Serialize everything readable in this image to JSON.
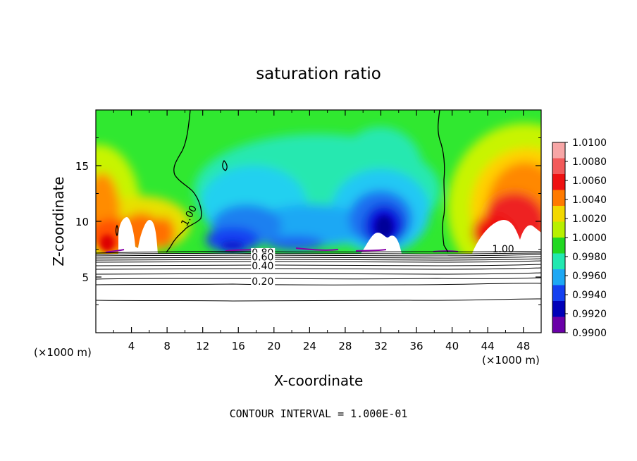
{
  "chart_data": {
    "type": "heatmap",
    "title": "saturation ratio",
    "xlabel": "X-coordinate",
    "ylabel": "Z-coordinate",
    "x_unit_label_left": "(×1000 m)",
    "x_unit_label_right": "(×1000 m)",
    "footer": "CONTOUR INTERVAL = 1.000E-01",
    "xlim": [
      0,
      50
    ],
    "ylim": [
      0,
      20
    ],
    "x_ticks": [
      4,
      8,
      12,
      16,
      20,
      24,
      28,
      32,
      36,
      40,
      44,
      48
    ],
    "y_ticks": [
      5,
      10,
      15
    ],
    "colorbar": {
      "levels": [
        "1.0100",
        "1.0080",
        "1.0060",
        "1.0040",
        "1.0020",
        "1.0000",
        "0.9980",
        "0.9960",
        "0.9940",
        "0.9920",
        "0.9900"
      ],
      "colors": [
        "#f7a6a6",
        "#f25a5a",
        "#ee1111",
        "#ff7a00",
        "#f2d800",
        "#b8f000",
        "#22d822",
        "#22e8b0",
        "#1ea8f4",
        "#1440f0",
        "#0000b8",
        "#6a00a8"
      ]
    },
    "contour_labels": [
      {
        "text": "1.00",
        "x": 10.2,
        "z": 9.5
      },
      {
        "text": "1.00",
        "x": 44.5,
        "z": 7.2
      },
      {
        "text": "0.80",
        "x": 17.5,
        "z": 6.9
      },
      {
        "text": "0.60",
        "x": 17.5,
        "z": 6.5
      },
      {
        "text": "0.40",
        "x": 17.5,
        "z": 5.7
      },
      {
        "text": "0.20",
        "x": 17.5,
        "z": 4.3
      }
    ],
    "cloud_base_z": 7.3,
    "stable_layer_contours_z": [
      7.1,
      6.9,
      6.7,
      6.5,
      6.3,
      6.0,
      5.7,
      5.3,
      4.8,
      4.3,
      3.0
    ]
  }
}
